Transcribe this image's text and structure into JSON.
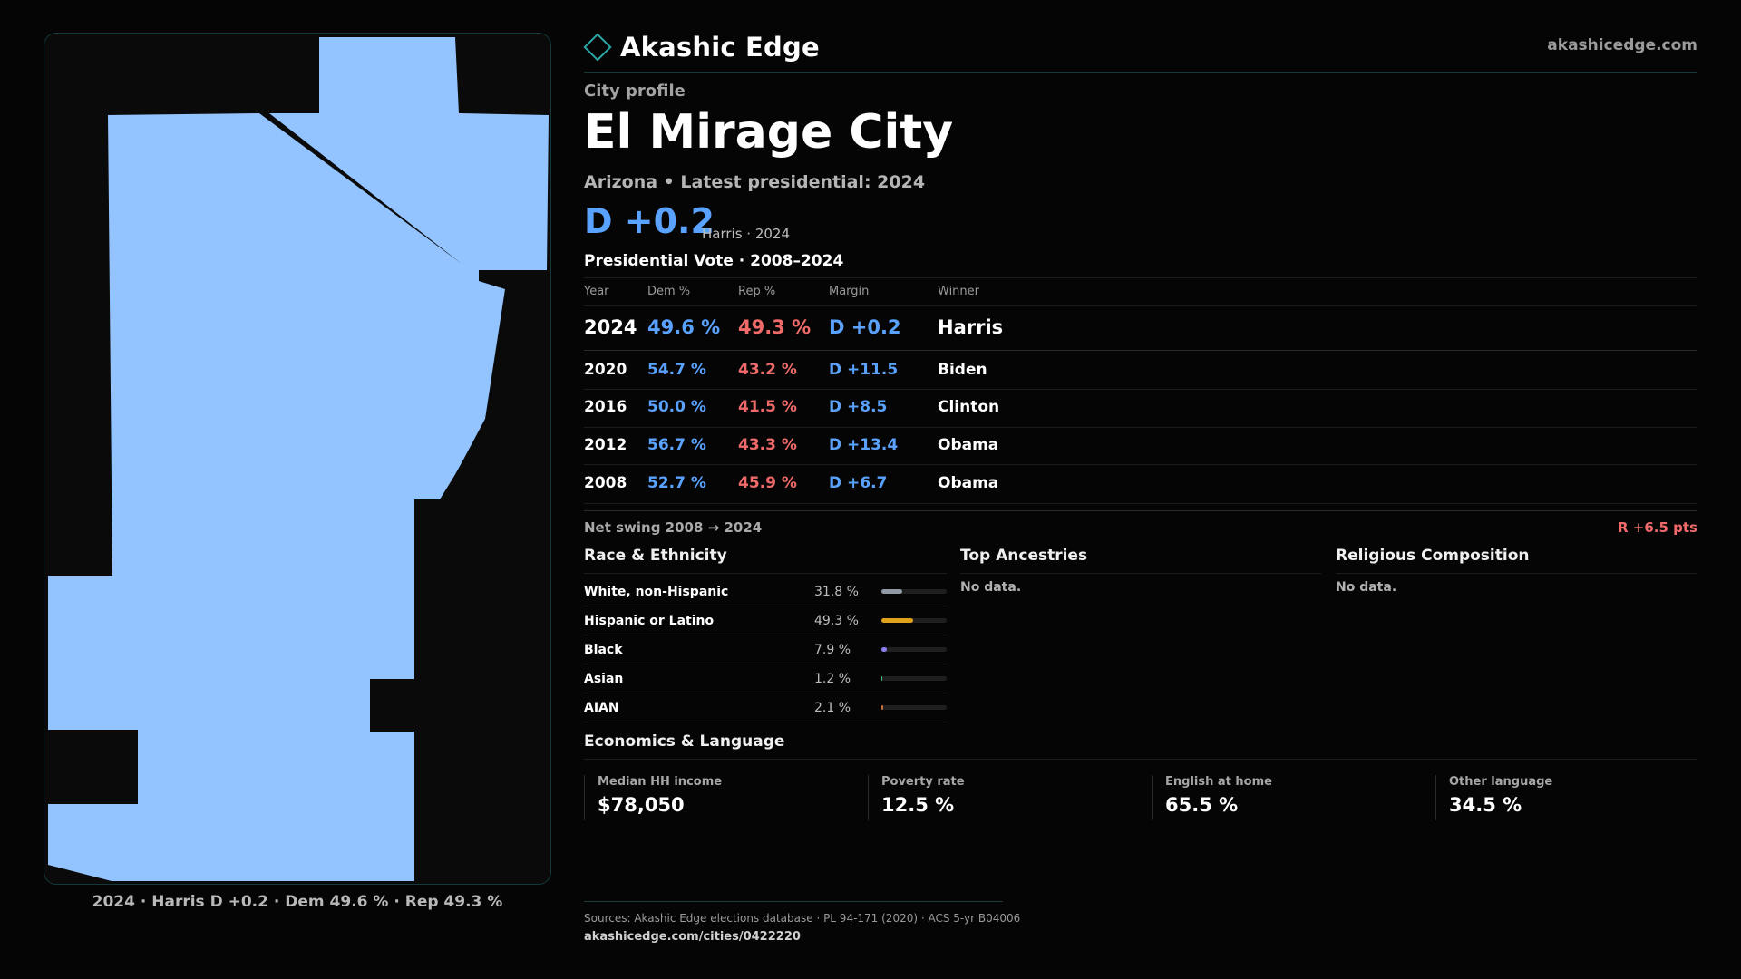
{
  "map": {
    "fill_color": "#93c4ff",
    "caption": "2024 · Harris D +0.2 · Dem 49.6 % · Rep 49.3 %"
  },
  "brand": {
    "name": "Akashic Edge",
    "url": "akashicedge.com",
    "icon": "diamond-icon",
    "accent": "#2aa7a7"
  },
  "header": {
    "eyebrow": "City profile",
    "title": "El Mirage City",
    "subtitle": "Arizona • Latest presidential: 2024",
    "margin": "D +0.2",
    "margin_note": "Harris · 2024"
  },
  "presidential": {
    "title": "Presidential Vote · 2008–2024",
    "headers": {
      "year": "Year",
      "dem": "Dem %",
      "rep": "Rep %",
      "margin": "Margin",
      "winner": "Winner"
    },
    "rows": [
      {
        "year": "2024",
        "dem": "49.6 %",
        "rep": "49.3 %",
        "margin": "D +0.2",
        "winner": "Harris"
      },
      {
        "year": "2020",
        "dem": "54.7 %",
        "rep": "43.2 %",
        "margin": "D +11.5",
        "winner": "Biden"
      },
      {
        "year": "2016",
        "dem": "50.0 %",
        "rep": "41.5 %",
        "margin": "D +8.5",
        "winner": "Clinton"
      },
      {
        "year": "2012",
        "dem": "56.7 %",
        "rep": "43.3 %",
        "margin": "D +13.4",
        "winner": "Obama"
      },
      {
        "year": "2008",
        "dem": "52.7 %",
        "rep": "45.9 %",
        "margin": "D +6.7",
        "winner": "Obama"
      }
    ],
    "swing_label": "Net swing 2008 → 2024",
    "swing_value": "R +6.5 pts",
    "colors": {
      "dem": "#5aa2ff",
      "rep": "#f06a6a"
    }
  },
  "race": {
    "title": "Race & Ethnicity",
    "items": [
      {
        "label": "White, non-Hispanic",
        "value": "31.8 %",
        "pct": 31.8,
        "color": "#8f9aa6"
      },
      {
        "label": "Hispanic or Latino",
        "value": "49.3 %",
        "pct": 49.3,
        "color": "#e0a11b"
      },
      {
        "label": "Black",
        "value": "7.9 %",
        "pct": 7.9,
        "color": "#8a7ff0"
      },
      {
        "label": "Asian",
        "value": "1.2 %",
        "pct": 1.2,
        "color": "#3fbf7f"
      },
      {
        "label": "AIAN",
        "value": "2.1 %",
        "pct": 2.1,
        "color": "#c0703a"
      }
    ]
  },
  "ancestries": {
    "title": "Top Ancestries",
    "empty": "No data."
  },
  "religion": {
    "title": "Religious Composition",
    "empty": "No data."
  },
  "economics": {
    "title": "Economics & Language",
    "stats": [
      {
        "label": "Median HH income",
        "value": "$78,050"
      },
      {
        "label": "Poverty rate",
        "value": "12.5 %"
      },
      {
        "label": "English at home",
        "value": "65.5 %"
      },
      {
        "label": "Other language",
        "value": "34.5 %"
      }
    ]
  },
  "footer": {
    "sources": "Sources: Akashic Edge elections database · PL 94-171 (2020) · ACS 5-yr B04006",
    "url": "akashicedge.com/cities/0422220"
  }
}
